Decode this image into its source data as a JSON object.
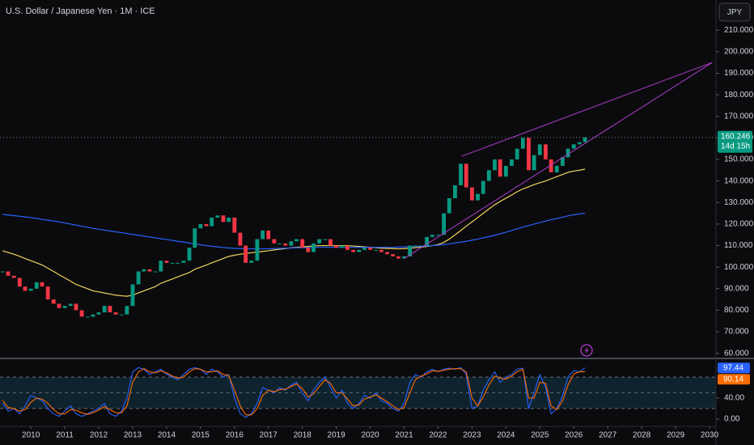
{
  "chart_data": [
    {
      "type": "candlestick",
      "title": "U.S. Dollar / Japanese Yen · 1M · ICE",
      "currency": "JPY",
      "countdown": "14d 15h",
      "x": [
        2009.17,
        2009.33,
        2009.5,
        2009.67,
        2009.83,
        2010,
        2010.17,
        2010.33,
        2010.5,
        2010.67,
        2010.83,
        2011,
        2011.17,
        2011.33,
        2011.5,
        2011.67,
        2011.83,
        2012,
        2012.17,
        2012.33,
        2012.5,
        2012.67,
        2012.83,
        2013,
        2013.17,
        2013.33,
        2013.5,
        2013.67,
        2013.83,
        2014,
        2014.17,
        2014.33,
        2014.5,
        2014.67,
        2014.83,
        2015,
        2015.17,
        2015.33,
        2015.5,
        2015.67,
        2015.83,
        2016,
        2016.17,
        2016.33,
        2016.5,
        2016.67,
        2016.83,
        2017,
        2017.17,
        2017.33,
        2017.5,
        2017.67,
        2017.83,
        2018,
        2018.17,
        2018.33,
        2018.5,
        2018.67,
        2018.83,
        2019,
        2019.17,
        2019.33,
        2019.5,
        2019.67,
        2019.83,
        2020,
        2020.17,
        2020.33,
        2020.5,
        2020.67,
        2020.83,
        2021,
        2021.17,
        2021.33,
        2021.5,
        2021.67,
        2021.83,
        2022,
        2022.17,
        2022.33,
        2022.5,
        2022.67,
        2022.83,
        2023,
        2023.17,
        2023.33,
        2023.5,
        2023.67,
        2023.83,
        2024,
        2024.17,
        2024.33,
        2024.5,
        2024.67,
        2024.83,
        2025,
        2025.17,
        2025.33,
        2025.5,
        2025.67,
        2025.83,
        2026,
        2026.17,
        2026.33
      ],
      "values": [
        98,
        96,
        95,
        91,
        89,
        90,
        93,
        91,
        85,
        83,
        81,
        82,
        83,
        80,
        77,
        77,
        78,
        79,
        82,
        79,
        78,
        78,
        82,
        92,
        98,
        99,
        98,
        98,
        103,
        102,
        102,
        102,
        103,
        109,
        118,
        120,
        119,
        123,
        124,
        121,
        123,
        116,
        110,
        102,
        103,
        113,
        117,
        113,
        111,
        111,
        110,
        112,
        113,
        109,
        107,
        111,
        113,
        113,
        110,
        109,
        110,
        108,
        107,
        108,
        109,
        108,
        108,
        107,
        106,
        105,
        104,
        105,
        110,
        110,
        110,
        114,
        115,
        115,
        125,
        132,
        138,
        148,
        137,
        131,
        134,
        140,
        145,
        150,
        142,
        147,
        150,
        155,
        160,
        145,
        152,
        157,
        150,
        144,
        147,
        151,
        155,
        157,
        158,
        160.246
      ],
      "up_color": "#089981",
      "down_color": "#f23645",
      "lines": [
        {
          "color": "#f2d45c",
          "values": [
            107.6,
            106.8,
            106,
            105,
            104,
            103,
            102,
            101,
            99.5,
            98,
            96.5,
            95,
            93.5,
            92,
            91,
            90,
            89,
            88.5,
            88,
            87.5,
            87,
            86.7,
            86.5,
            87,
            88,
            89,
            90,
            91,
            92.5,
            93.5,
            94.5,
            95.5,
            96.5,
            97.5,
            99,
            100,
            101,
            102,
            103,
            104,
            105,
            105.5,
            106,
            106.3,
            106.7,
            107,
            107.3,
            107.6,
            108,
            108.3,
            108.6,
            109,
            109.2,
            109.4,
            109.6,
            109.8,
            110,
            110,
            110,
            110,
            110,
            110,
            109.8,
            109.6,
            109.4,
            109.2,
            109,
            108.8,
            108.7,
            108.6,
            108.5,
            108.6,
            108.8,
            109,
            109.3,
            109.6,
            110,
            110.5,
            111.5,
            113,
            115,
            117,
            119,
            121,
            123,
            125,
            127,
            129,
            130.5,
            132,
            133.5,
            135,
            136.3,
            137.3,
            138.3,
            139.2,
            140,
            141,
            142,
            143,
            144,
            144.6,
            145,
            145.5
          ]
        },
        {
          "color": "#2962ff",
          "values": [
            124.5,
            124.2,
            123.9,
            123.6,
            123.3,
            123,
            122.6,
            122.2,
            121.8,
            121.4,
            121,
            120.5,
            120,
            119.5,
            119,
            118.5,
            118,
            117.6,
            117.2,
            116.8,
            116.4,
            116,
            115.6,
            115.2,
            114.8,
            114.4,
            114,
            113.6,
            113.2,
            112.8,
            112.4,
            112,
            111.6,
            111.2,
            110.8,
            110.4,
            110,
            109.7,
            109.4,
            109.1,
            108.9,
            108.7,
            108.6,
            108.5,
            108.5,
            108.5,
            108.5,
            108.5,
            108.6,
            108.7,
            108.8,
            108.9,
            109,
            109,
            109.1,
            109.1,
            109.2,
            109.2,
            109.2,
            109.2,
            109.2,
            109.2,
            109.2,
            109.2,
            109.2,
            109.2,
            109.2,
            109.2,
            109.2,
            109.2,
            109.3,
            109.4,
            109.5,
            109.6,
            109.7,
            109.8,
            110,
            110.2,
            110.5,
            110.8,
            111.2,
            111.6,
            112,
            112.5,
            113,
            113.6,
            114.2,
            114.8,
            115.5,
            116.2,
            117,
            117.8,
            118.6,
            119.3,
            120,
            120.7,
            121.4,
            122,
            122.6,
            123.2,
            123.8,
            124.3,
            124.7,
            125
          ]
        }
      ],
      "trendlines": [
        {
          "color": "#b03ccf",
          "x": [
            2022.7,
            2030.08
          ],
          "y": [
            151.5,
            195
          ]
        },
        {
          "color": "#b03ccf",
          "x": [
            2021.0,
            2030.08
          ],
          "y": [
            104,
            195
          ]
        }
      ],
      "xlim": [
        2009.09,
        2030.19
      ],
      "xticks": [
        2010,
        2011,
        2012,
        2013,
        2014,
        2015,
        2016,
        2017,
        2018,
        2019,
        2020,
        2021,
        2022,
        2023,
        2024,
        2025,
        2026,
        2027,
        2028,
        2029,
        2030
      ],
      "ylim": [
        58,
        224
      ],
      "yticks": [
        {
          "value": 60,
          "label": "60.000"
        },
        {
          "value": 70,
          "label": "70.000"
        },
        {
          "value": 80,
          "label": "80.000"
        },
        {
          "value": 90,
          "label": "90.000"
        },
        {
          "value": 100,
          "label": "100.000"
        },
        {
          "value": 110,
          "label": "110.000"
        },
        {
          "value": 120,
          "label": "120.000"
        },
        {
          "value": 130,
          "label": "130.000"
        },
        {
          "value": 140,
          "label": "140.000"
        },
        {
          "value": 150,
          "label": "150.000"
        },
        {
          "value": 160,
          "label": "160.000"
        },
        {
          "value": 170,
          "label": "170.000"
        },
        {
          "value": 180,
          "label": "180.000"
        },
        {
          "value": 190,
          "label": "190.000"
        },
        {
          "value": 200,
          "label": "200.000"
        },
        {
          "value": 210,
          "label": "210.000"
        }
      ]
    },
    {
      "type": "line",
      "series": [
        {
          "color": "#2962ff",
          "values": [
            30,
            15,
            20,
            10,
            25,
            45,
            40,
            35,
            20,
            10,
            5,
            15,
            25,
            10,
            5,
            10,
            15,
            20,
            30,
            10,
            5,
            15,
            40,
            90,
            98,
            95,
            85,
            90,
            95,
            85,
            80,
            75,
            85,
            95,
            98,
            95,
            85,
            95,
            90,
            80,
            85,
            40,
            10,
            3,
            10,
            30,
            60,
            55,
            50,
            60,
            55,
            65,
            70,
            50,
            35,
            55,
            70,
            80,
            60,
            40,
            55,
            30,
            20,
            30,
            45,
            40,
            50,
            35,
            30,
            20,
            15,
            30,
            70,
            85,
            80,
            90,
            95,
            90,
            95,
            97,
            95,
            98,
            85,
            20,
            25,
            55,
            75,
            90,
            70,
            80,
            85,
            95,
            97,
            20,
            50,
            85,
            60,
            10,
            20,
            45,
            80,
            92,
            90,
            97.44
          ]
        },
        {
          "color": "#ff6d00",
          "values": [
            35,
            22,
            20,
            15,
            18,
            32,
            40,
            38,
            30,
            18,
            10,
            10,
            18,
            17,
            12,
            9,
            12,
            17,
            24,
            18,
            12,
            12,
            25,
            70,
            90,
            96,
            90,
            88,
            92,
            88,
            82,
            78,
            80,
            90,
            96,
            95,
            90,
            90,
            92,
            85,
            83,
            55,
            25,
            8,
            8,
            20,
            45,
            55,
            52,
            56,
            57,
            62,
            67,
            58,
            42,
            48,
            62,
            75,
            68,
            50,
            50,
            38,
            25,
            27,
            38,
            42,
            46,
            40,
            33,
            25,
            18,
            22,
            50,
            75,
            82,
            86,
            92,
            91,
            93,
            95,
            96,
            96,
            90,
            40,
            25,
            42,
            65,
            82,
            78,
            76,
            82,
            90,
            95,
            40,
            40,
            70,
            68,
            25,
            18,
            35,
            65,
            86,
            90,
            90.14
          ]
        }
      ],
      "levels": [
        20,
        50,
        80
      ],
      "ylim": [
        -14,
        114
      ],
      "yticks": [
        {
          "value": 0,
          "label": "0.00"
        },
        {
          "value": 40,
          "label": "40.00"
        }
      ]
    }
  ]
}
